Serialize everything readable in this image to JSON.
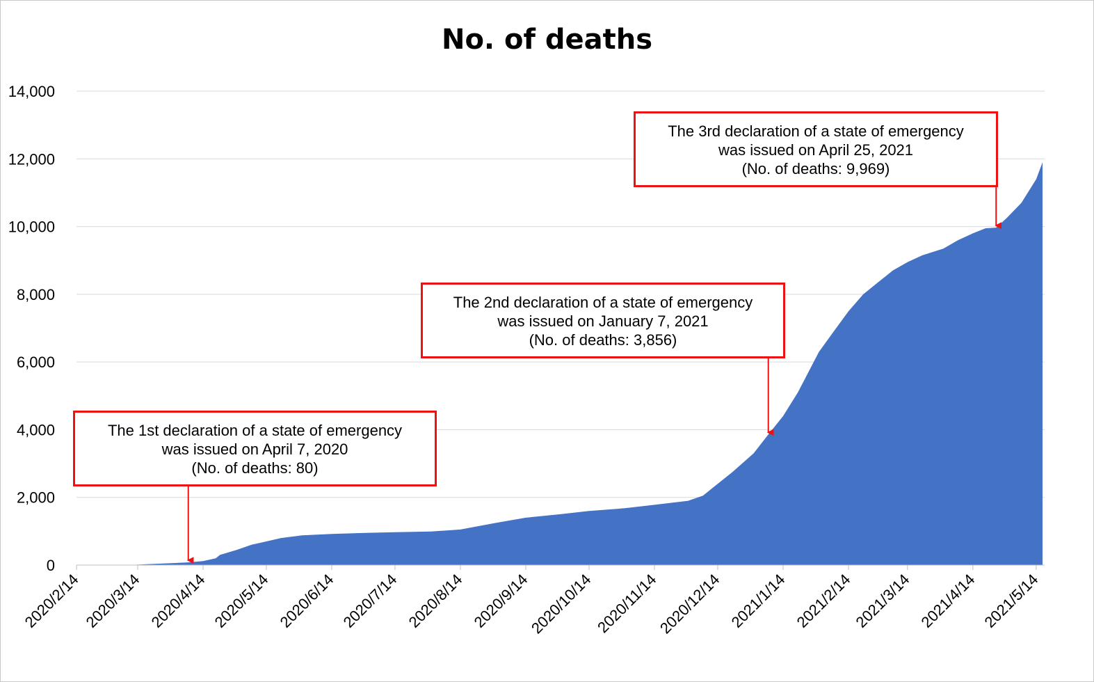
{
  "chart_data": {
    "type": "area",
    "title": "No. of deaths",
    "xlabel": "",
    "ylabel": "",
    "ylim": [
      0,
      14000
    ],
    "yticks": [
      0,
      2000,
      4000,
      6000,
      8000,
      10000,
      12000,
      14000
    ],
    "ytick_labels": [
      "0",
      "2,000",
      "4,000",
      "6,000",
      "8,000",
      "10,000",
      "12,000",
      "14,000"
    ],
    "xtick_labels": [
      "2020/2/14",
      "2020/3/14",
      "2020/4/14",
      "2020/5/14",
      "2020/6/14",
      "2020/7/14",
      "2020/8/14",
      "2020/9/14",
      "2020/10/14",
      "2020/11/14",
      "2020/12/14",
      "2021/1/14",
      "2021/2/14",
      "2021/3/14",
      "2021/4/14",
      "2021/5/14"
    ],
    "xtick_dates": [
      "2020-02-14",
      "2020-03-14",
      "2020-04-14",
      "2020-05-14",
      "2020-06-14",
      "2020-07-14",
      "2020-08-14",
      "2020-09-14",
      "2020-10-14",
      "2020-11-14",
      "2020-12-14",
      "2021-01-14",
      "2021-02-14",
      "2021-03-14",
      "2021-04-14",
      "2021-05-14"
    ],
    "xlim": [
      "2020-02-14",
      "2021-05-18"
    ],
    "grid": true,
    "color": "#4472c4",
    "series": [
      {
        "x": [
          "2020-02-14",
          "2020-03-13",
          "2020-03-20",
          "2020-03-31",
          "2020-04-07",
          "2020-04-14",
          "2020-04-20",
          "2020-04-22",
          "2020-04-30",
          "2020-05-07",
          "2020-05-14",
          "2020-05-21",
          "2020-05-31",
          "2020-06-14",
          "2020-06-30",
          "2020-07-14",
          "2020-07-31",
          "2020-08-14",
          "2020-08-31",
          "2020-09-14",
          "2020-09-30",
          "2020-10-14",
          "2020-10-31",
          "2020-11-14",
          "2020-11-30",
          "2020-12-07",
          "2020-12-14",
          "2020-12-21",
          "2020-12-31",
          "2021-01-07",
          "2021-01-14",
          "2021-01-21",
          "2021-01-31",
          "2021-02-07",
          "2021-02-14",
          "2021-02-21",
          "2021-02-28",
          "2021-03-07",
          "2021-03-14",
          "2021-03-21",
          "2021-03-31",
          "2021-04-07",
          "2021-04-14",
          "2021-04-20",
          "2021-04-25",
          "2021-04-30",
          "2021-05-07",
          "2021-05-14",
          "2021-05-17"
        ],
        "y": [
          0,
          10,
          30,
          60,
          80,
          120,
          200,
          300,
          450,
          600,
          700,
          800,
          880,
          920,
          950,
          970,
          990,
          1050,
          1250,
          1400,
          1500,
          1600,
          1680,
          1780,
          1900,
          2050,
          2400,
          2750,
          3300,
          3856,
          4400,
          5100,
          6300,
          6900,
          7500,
          8000,
          8350,
          8700,
          8950,
          9150,
          9350,
          9600,
          9800,
          9950,
          9969,
          10250,
          10700,
          11400,
          11900
        ]
      }
    ],
    "annotations": [
      {
        "lines": [
          "The 1st declaration of a state of emergency",
          "was issued on April 7, 2020",
          "(No. of deaths: 80)"
        ],
        "date": "2020-04-07",
        "value": 80
      },
      {
        "lines": [
          "The 2nd declaration of a state of emergency",
          "was issued on January 7, 2021",
          "(No. of deaths: 3,856)"
        ],
        "date": "2021-01-07",
        "value": 3856
      },
      {
        "lines": [
          "The 3rd declaration of a state of emergency",
          "was issued on April 25, 2021",
          "(No. of deaths: 9,969)"
        ],
        "date": "2021-04-25",
        "value": 9969
      }
    ]
  }
}
